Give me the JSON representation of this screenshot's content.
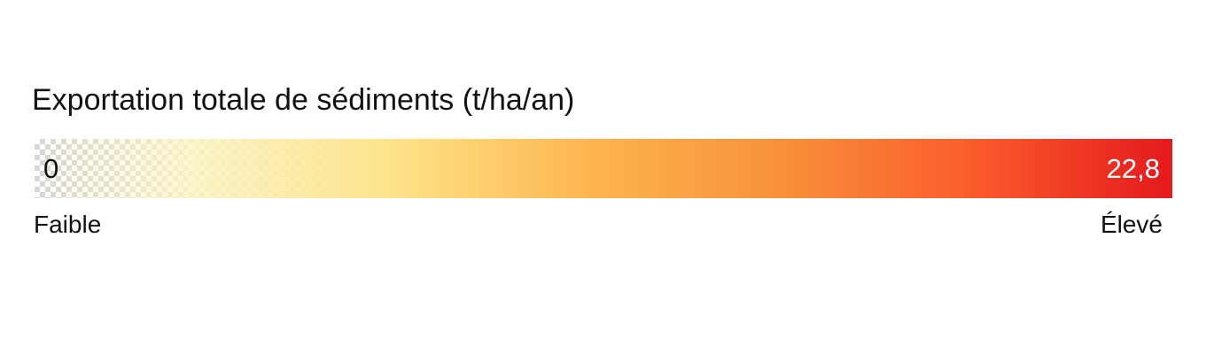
{
  "legend": {
    "title": "Exportation totale de sédiments (t/ha/an)",
    "min_value": "0",
    "max_value": "22,8",
    "low_label": "Faible",
    "high_label": "Élevé",
    "ramp_colors": [
      "#fdf5c4",
      "#fde48a",
      "#fdb651",
      "#f7913a",
      "#fb5a2c",
      "#e31a1c"
    ],
    "transparent_low_end": true
  }
}
